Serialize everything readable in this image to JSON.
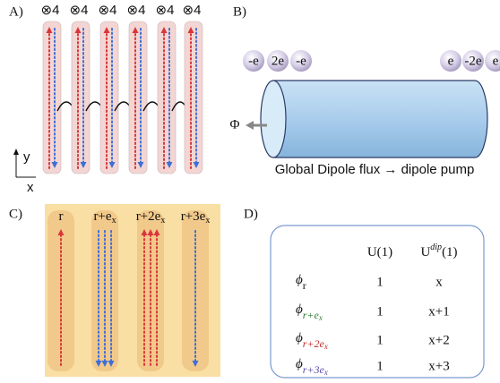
{
  "panel_labels": [
    "A)",
    "B)",
    "C)",
    "D)"
  ],
  "panel_a": {
    "tube_labels": [
      "⊗4",
      "⊗4",
      "⊗4",
      "⊗4",
      "⊗4",
      "⊗4"
    ],
    "axis_y": "y",
    "axis_x": "x"
  },
  "panel_b": {
    "left_charges": [
      "-e",
      "2e",
      "-e"
    ],
    "right_charges": [
      "e",
      "-2e",
      "e"
    ],
    "flux_symbol": "Φ",
    "caption": "Global Dipole flux → dipole pump"
  },
  "panel_c": {
    "columns": [
      {
        "label": "r"
      },
      {
        "label": "r+e",
        "sub": "x"
      },
      {
        "label": "r+2e",
        "sub": "x"
      },
      {
        "label": "r+3e",
        "sub": "x"
      }
    ]
  },
  "panel_d": {
    "headers": [
      {
        "label": "U(1)"
      },
      {
        "label": "U",
        "sup": "dip",
        "rest": "(1)"
      }
    ],
    "rows": [
      {
        "symbol": "ϕ",
        "sub": "r",
        "cells": [
          "1",
          "x"
        ]
      },
      {
        "symbol": "ϕ",
        "sub": "r+e",
        "subsub": "x",
        "cells": [
          "1",
          "x+1"
        ]
      },
      {
        "symbol": "ϕ",
        "sub": "r+2e",
        "subsub": "x",
        "cells": [
          "1",
          "x+2"
        ]
      },
      {
        "symbol": "ϕ",
        "sub": "r+3e",
        "subsub": "x",
        "cells": [
          "1",
          "x+3"
        ]
      }
    ]
  }
}
